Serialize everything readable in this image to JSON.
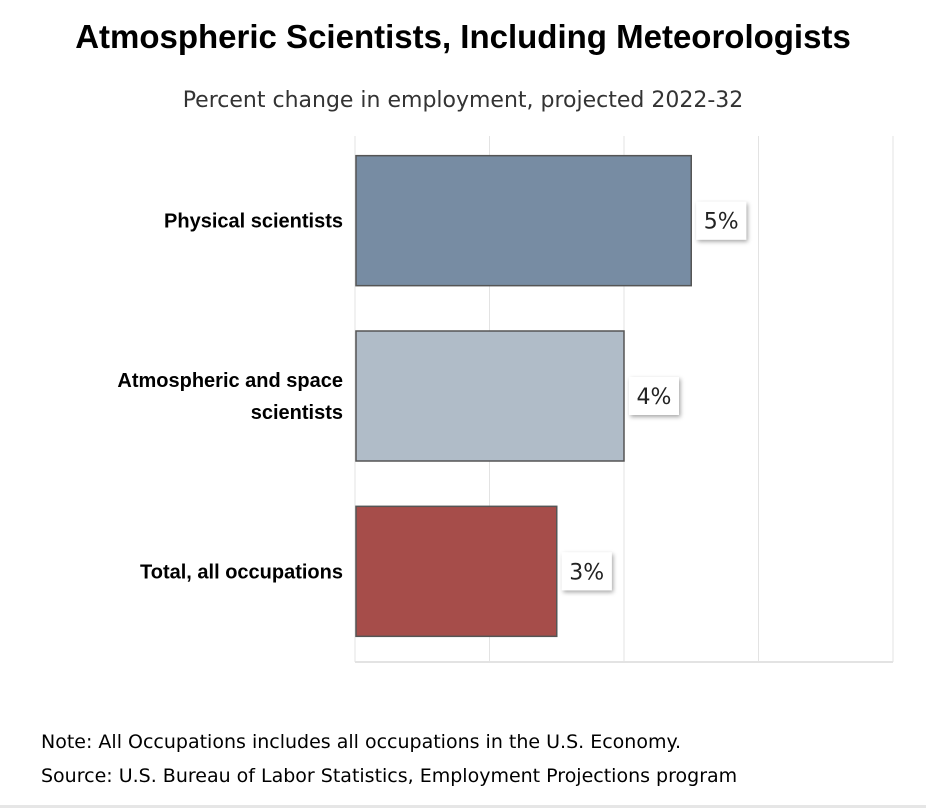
{
  "chart_data": {
    "type": "bar",
    "orientation": "horizontal",
    "title": "Atmospheric Scientists, Including Meteorologists",
    "subtitle": "Percent change in employment, projected 2022-32",
    "categories": [
      [
        "Physical scientists"
      ],
      [
        "Atmospheric and space",
        "scientists"
      ],
      [
        "Total, all occupations"
      ]
    ],
    "values": [
      5,
      4,
      3
    ],
    "data_labels": [
      "5%",
      "4%",
      "3%"
    ],
    "bar_colors": [
      "#778ca3",
      "#b0bcc8",
      "#a64d4a"
    ],
    "xlim": [
      0,
      8
    ],
    "grid": true,
    "legend": "none"
  },
  "note": "Note: All Occupations includes all occupations in the U.S. Economy.",
  "source": "Source: U.S. Bureau of Labor Statistics, Employment Projections program"
}
